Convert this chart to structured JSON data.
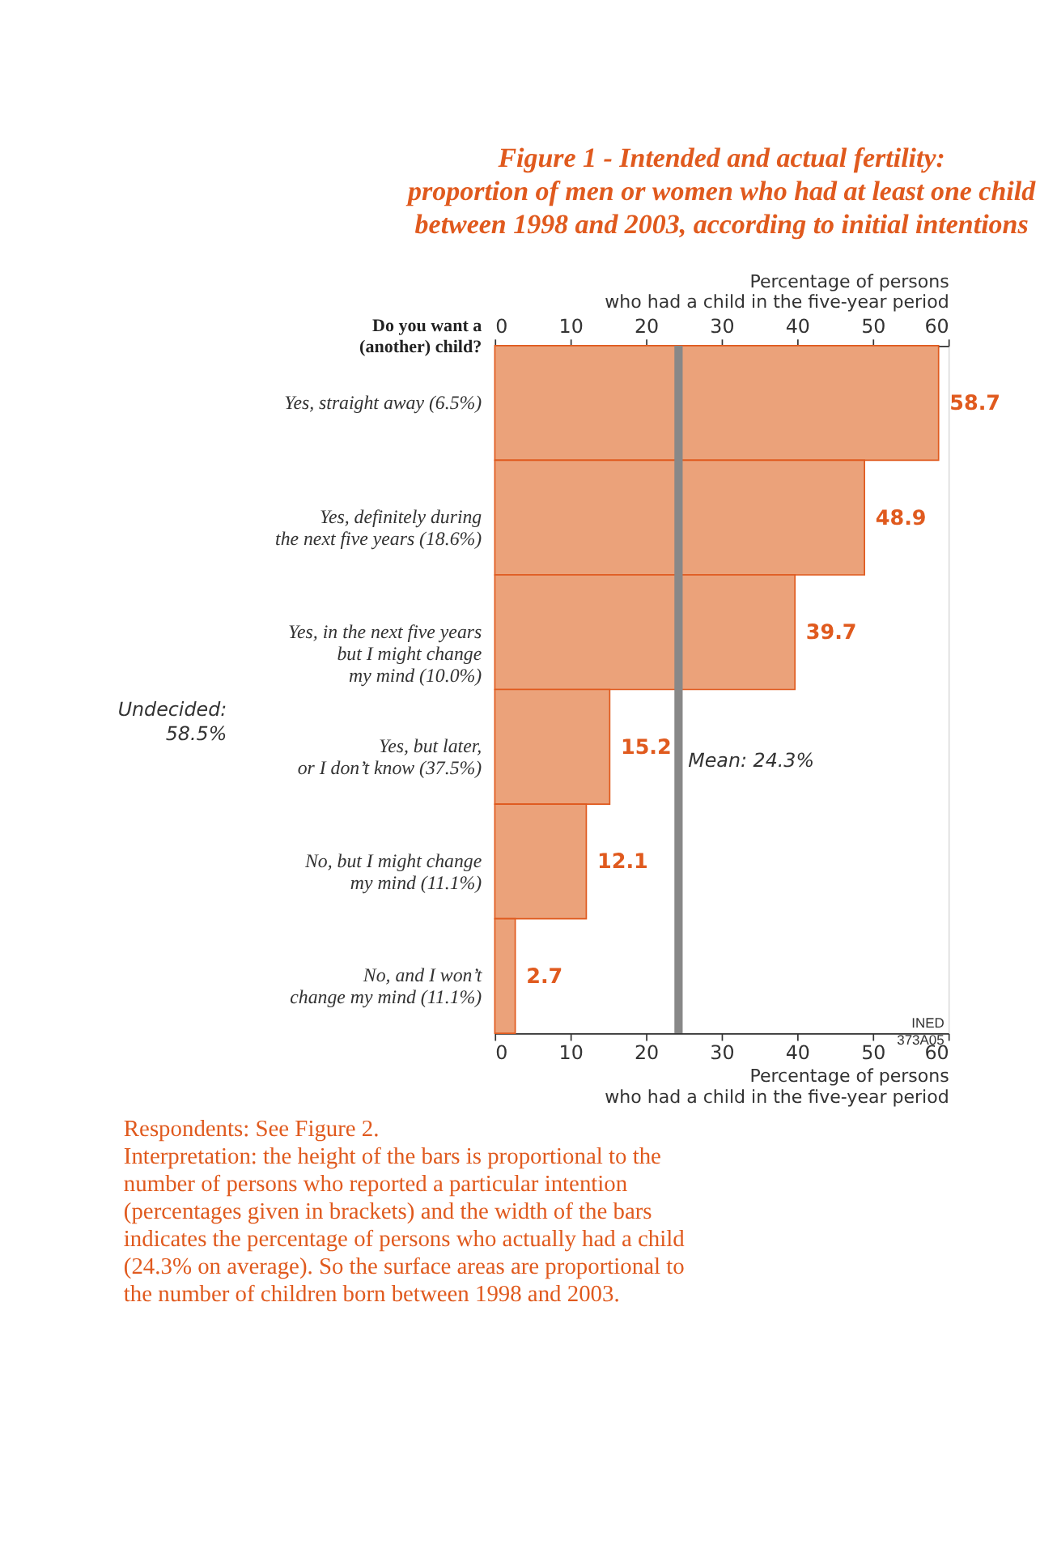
{
  "chart_data": {
    "type": "bar",
    "orientation": "horizontal",
    "title": "Figure 1 - Intended and actual fertility:\nproportion of men or women who had at least one child\nbetween 1998 and 2003, according to initial intentions",
    "ylabel": "Do you want a\n(another) child?",
    "xlabel": "Percentage of persons\nwho had a child in the five-year period",
    "x2label": "Percentage of persons\nwho had a child in the five-year period",
    "categories": [
      "Yes, straight away (6.5%)",
      "Yes, definitely during\nthe next five years (18.6%)",
      "Yes, in the next five years\nbut I might change\nmy mind (10.0%)",
      "Yes, but later,\nor I don’t know (37.5%)",
      "No, but I might change\nmy mind (11.1%)",
      "No, and I won’t\nchange my mind (11.1%)"
    ],
    "values": [
      58.7,
      48.9,
      39.7,
      15.2,
      12.1,
      2.7
    ],
    "color": "#eba27a",
    "data_labels": true,
    "xlim": [
      0,
      60
    ],
    "xticks": [
      0,
      10,
      20,
      30,
      40,
      50,
      60
    ],
    "x2lim": [
      0,
      60
    ],
    "x2ticks": [
      0,
      10,
      20,
      30,
      40,
      50,
      60
    ],
    "ref_lines": [
      {
        "axis": "x",
        "value": 24.3,
        "label": "Mean: 24.3%",
        "color": "#888888"
      }
    ],
    "grid": false,
    "annotations": [
      "Undecided:\n58.5%",
      "INED\n373A05",
      "Respondents: See Figure 2.",
      "Interpretation: the height of the bars is proportional to the number of persons who reported a particular intention (percentages given in brackets) and the width of the bars indicates the percentage of persons who actually had a child (24.3% on average). So the surface areas are proportional to the number of children born between 1998 and 2003."
    ]
  }
}
